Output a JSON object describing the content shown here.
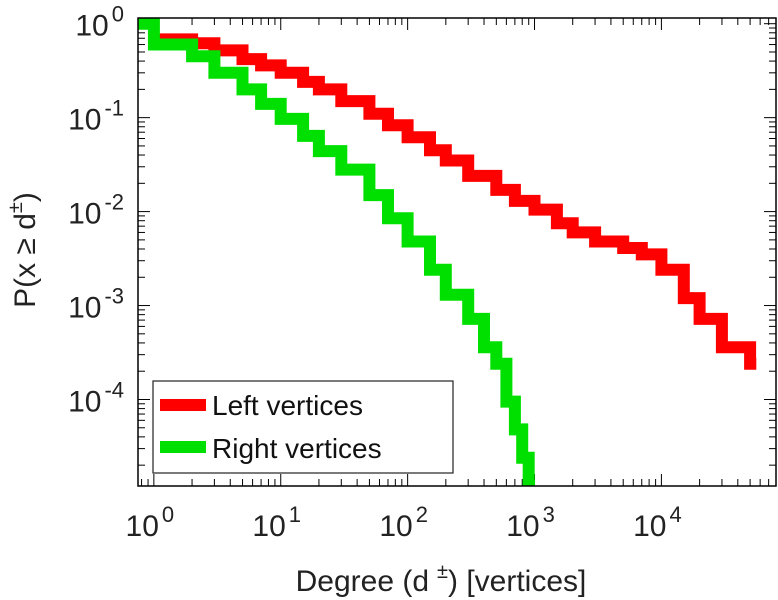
{
  "chart_data": {
    "type": "line",
    "step": true,
    "xscale": "log",
    "yscale": "log",
    "xlim": [
      0.75,
      80000
    ],
    "ylim": [
      1.2e-05,
      1.15
    ],
    "xlabel": "Degree (d",
    "xlabel_sup": "±",
    "xlabel_suffix": ") [vertices]",
    "ylabel": "P(x ≥ d",
    "ylabel_sup": "±",
    "ylabel_suffix": ")",
    "x_ticks": [
      {
        "base": "10",
        "exp": "0",
        "value": 1
      },
      {
        "base": "10",
        "exp": "1",
        "value": 10
      },
      {
        "base": "10",
        "exp": "2",
        "value": 100
      },
      {
        "base": "10",
        "exp": "3",
        "value": 1000
      },
      {
        "base": "10",
        "exp": "4",
        "value": 10000
      }
    ],
    "y_ticks": [
      {
        "base": "10",
        "exp": "0",
        "value": 1
      },
      {
        "base": "10",
        "exp": "-1",
        "value": 0.1
      },
      {
        "base": "10",
        "exp": "-2",
        "value": 0.01
      },
      {
        "base": "10",
        "exp": "-3",
        "value": 0.001
      },
      {
        "base": "10",
        "exp": "-4",
        "value": 0.0001
      }
    ],
    "legend_position": "bottom-left",
    "series": [
      {
        "name": "Left vertices",
        "color": "#ff0000",
        "x": [
          1,
          2,
          3,
          5,
          7,
          10,
          15,
          20,
          30,
          50,
          70,
          100,
          150,
          200,
          300,
          500,
          700,
          1000,
          1500,
          2000,
          3000,
          5000,
          7000,
          10000,
          15000,
          20000,
          30000,
          50000
        ],
        "y": [
          0.68,
          0.62,
          0.52,
          0.42,
          0.36,
          0.3,
          0.24,
          0.2,
          0.15,
          0.11,
          0.083,
          0.062,
          0.045,
          0.035,
          0.024,
          0.017,
          0.013,
          0.0105,
          0.0075,
          0.006,
          0.0048,
          0.0041,
          0.0035,
          0.0024,
          0.0012,
          0.00072,
          0.00036,
          0.00024
        ]
      },
      {
        "name": "Right vertices",
        "color": "#00e000",
        "x": [
          0.75,
          1,
          2,
          3,
          5,
          7,
          10,
          15,
          20,
          30,
          50,
          70,
          100,
          150,
          200,
          300,
          400,
          500,
          600,
          700,
          800,
          900
        ],
        "y": [
          1.0,
          0.6,
          0.45,
          0.3,
          0.2,
          0.14,
          0.097,
          0.064,
          0.044,
          0.028,
          0.015,
          0.0085,
          0.0048,
          0.0024,
          0.0013,
          0.00072,
          0.00036,
          0.00024,
          9.5e-05,
          4.8e-05,
          2.4e-05,
          1.2e-05
        ]
      }
    ]
  }
}
